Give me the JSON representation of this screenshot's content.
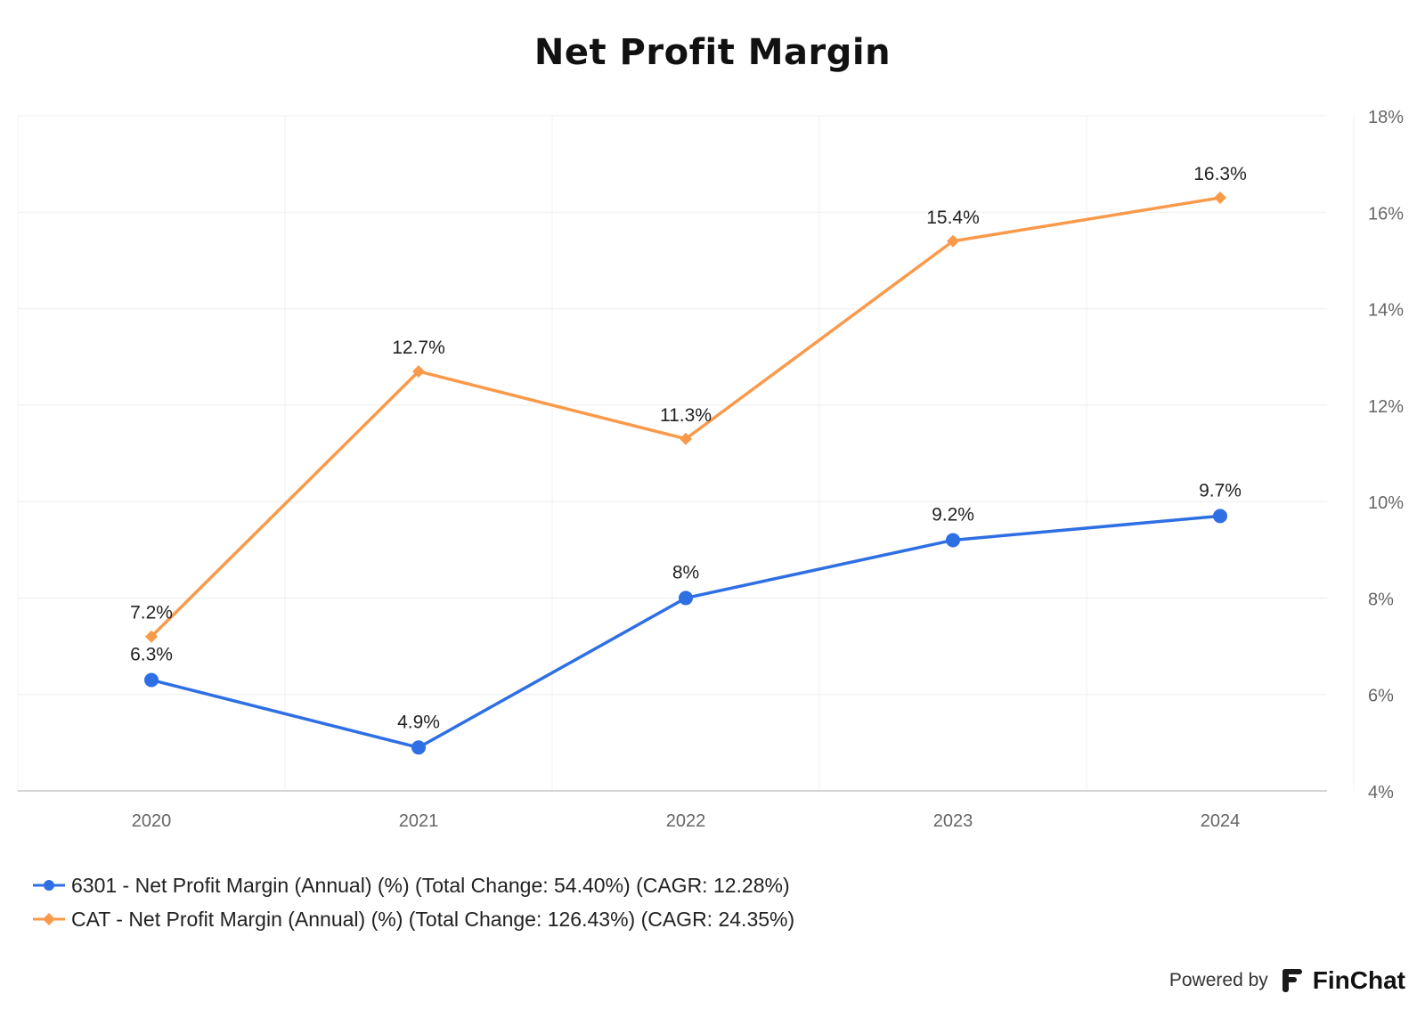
{
  "chart_data": {
    "type": "line",
    "title": "Net Profit Margin",
    "categories": [
      "2020",
      "2021",
      "2022",
      "2023",
      "2024"
    ],
    "ylim": [
      4,
      18
    ],
    "y_ticks": [
      "4%",
      "6%",
      "8%",
      "10%",
      "12%",
      "14%",
      "16%",
      "18%"
    ],
    "y_axis_position": "right",
    "grid": true,
    "legend_position": "bottom-left",
    "series": [
      {
        "name": "6301 - Net Profit Margin (Annual) (%) (Total Change: 54.40%) (CAGR: 12.28%)",
        "values": [
          6.3,
          4.9,
          8.0,
          9.2,
          9.7
        ],
        "labels": [
          "6.3%",
          "4.9%",
          "8%",
          "9.2%",
          "9.7%"
        ],
        "color": "#2f6fe4",
        "marker": "circle"
      },
      {
        "name": "CAT - Net Profit Margin (Annual) (%) (Total Change: 126.43%) (CAGR: 24.35%)",
        "values": [
          7.2,
          12.7,
          11.3,
          15.4,
          16.3
        ],
        "labels": [
          "7.2%",
          "12.7%",
          "11.3%",
          "15.4%",
          "16.3%"
        ],
        "color": "#f99a4b",
        "marker": "diamond"
      }
    ]
  },
  "footer": {
    "powered_by": "Powered by",
    "brand": "FinChat",
    "brand_icon": "finchat-logo-icon"
  }
}
